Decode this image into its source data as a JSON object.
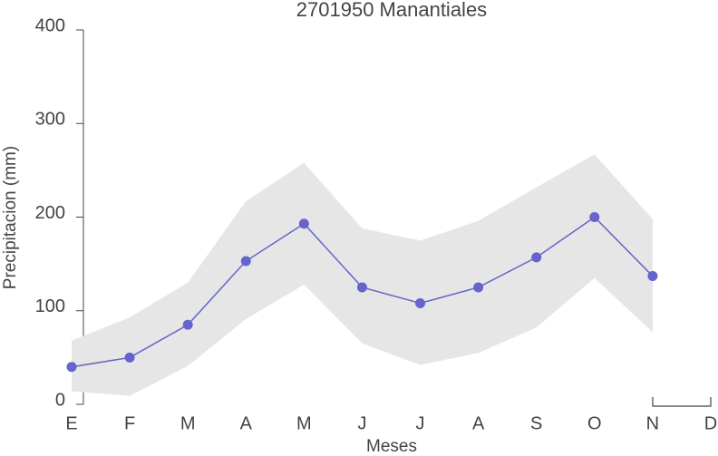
{
  "chart_data": {
    "type": "line",
    "title": "2701950 Manantiales",
    "x_label": "Meses",
    "y_label": "Precipitacion (mm)",
    "categories": [
      "E",
      "F",
      "M",
      "A",
      "M",
      "J",
      "J",
      "A",
      "S",
      "O",
      "N",
      "D"
    ],
    "series": [
      {
        "color": "#6464cc",
        "values": [
          40,
          50,
          85,
          153,
          193,
          125,
          108,
          125,
          157,
          200,
          137,
          null
        ]
      }
    ],
    "band": {
      "color": "#e6e6e6",
      "upper": [
        68,
        93,
        130,
        217,
        258,
        188,
        175,
        196,
        232,
        267,
        198,
        null
      ],
      "lower": [
        14,
        9,
        41,
        91,
        128,
        65,
        42,
        55,
        82,
        135,
        77,
        null
      ]
    },
    "ylim": [
      0,
      400
    ],
    "yticks": [
      0,
      100,
      200,
      300,
      400
    ]
  }
}
